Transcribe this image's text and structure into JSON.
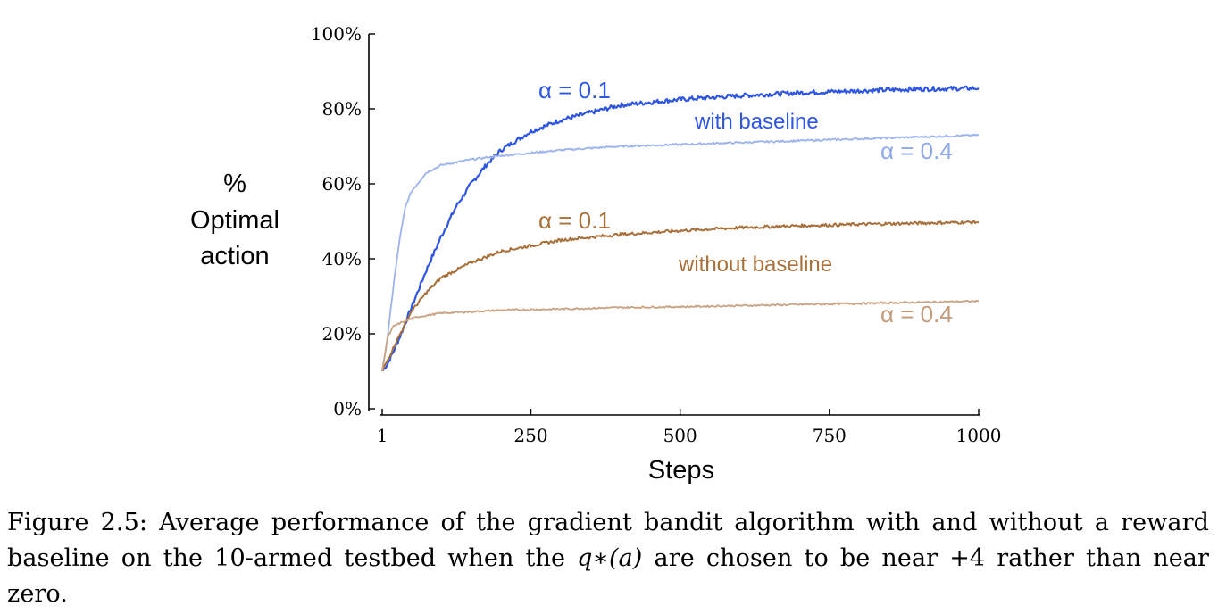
{
  "chart_data": {
    "type": "line",
    "xlabel": "Steps",
    "ylabel_lines": [
      "%",
      "Optimal",
      "action"
    ],
    "xlim": [
      1,
      1000
    ],
    "ylim": [
      0,
      100
    ],
    "x_ticks": [
      1,
      250,
      500,
      750,
      1000
    ],
    "x_tick_labels": [
      "1",
      "250",
      "500",
      "750",
      "1000"
    ],
    "y_ticks": [
      0,
      20,
      40,
      60,
      80,
      100
    ],
    "y_tick_labels": [
      "0%",
      "20%",
      "40%",
      "60%",
      "80%",
      "100%"
    ],
    "grid": false,
    "series": [
      {
        "color": "#2f56e0",
        "x": [
          1,
          10,
          25,
          50,
          75,
          100,
          125,
          150,
          175,
          200,
          250,
          300,
          350,
          400,
          500,
          600,
          700,
          800,
          900,
          1000
        ],
        "y": [
          10,
          12,
          17,
          27,
          37,
          46,
          54,
          60,
          65,
          69,
          74,
          77,
          79,
          81,
          82.5,
          83.5,
          84.3,
          84.8,
          85.3,
          85.5
        ]
      },
      {
        "color": "#9cb3ee",
        "x": [
          1,
          10,
          20,
          30,
          40,
          50,
          75,
          100,
          150,
          200,
          300,
          400,
          500,
          600,
          700,
          800,
          900,
          1000
        ],
        "y": [
          10,
          19,
          33,
          45,
          54,
          58,
          63,
          65,
          66.5,
          67.5,
          69,
          70,
          70.5,
          71,
          71.5,
          72,
          72.5,
          73
        ]
      },
      {
        "color": "#a8703a",
        "x": [
          1,
          10,
          25,
          50,
          75,
          100,
          150,
          200,
          250,
          300,
          400,
          500,
          600,
          700,
          800,
          900,
          1000
        ],
        "y": [
          10,
          13,
          18,
          26,
          31,
          35,
          39,
          42,
          43.5,
          45,
          46.5,
          47.5,
          48.3,
          48.8,
          49.2,
          49.5,
          49.8
        ]
      },
      {
        "color": "#c9a383",
        "x": [
          1,
          10,
          20,
          40,
          60,
          100,
          200,
          300,
          400,
          500,
          600,
          700,
          800,
          900,
          1000
        ],
        "y": [
          10,
          19,
          22,
          23.5,
          24.5,
          25.5,
          26.3,
          26.6,
          27,
          27.2,
          27.5,
          27.8,
          28.1,
          28.4,
          28.7
        ]
      }
    ],
    "annotations": {
      "blue_alpha": "α = 0.1",
      "with_baseline": "with baseline",
      "lightblue_alpha": "α = 0.4",
      "brown_alpha": "α = 0.1",
      "without_baseline": "without baseline",
      "lightbrown_alpha": "α = 0.4"
    }
  },
  "caption": {
    "label": "Figure 2.5:",
    "text_before_math": "Average performance of the gradient bandit algorithm with and without a reward baseline on the 10-armed testbed when the",
    "math": "q∗(a)",
    "text_after_math": "are chosen to be near +4 rather than near zero."
  }
}
